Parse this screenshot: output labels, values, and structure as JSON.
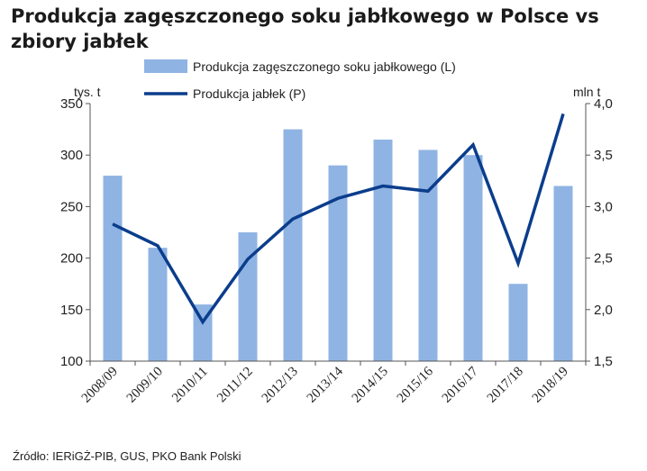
{
  "title": "Produkcja zagęszczonego soku jabłkowego w Polsce vs zbiory jabłek",
  "source": "Źródło: IERiGŻ-PIB, GUS, PKO Bank Polski",
  "chart_data": {
    "type": "bar+line",
    "categories": [
      "2008/09",
      "2009/10",
      "2010/11",
      "2011/12",
      "2012/13",
      "2013/14",
      "2014/15",
      "2015/16",
      "2016/17",
      "2017/18",
      "2018/19"
    ],
    "series": [
      {
        "name": "Produkcja zagęszczonego soku jabłkowego (L)",
        "type": "bar",
        "axis": "left",
        "color": "#8fb3e3",
        "values": [
          280,
          210,
          155,
          225,
          325,
          290,
          315,
          305,
          300,
          175,
          270
        ]
      },
      {
        "name": "Produkcja jabłek (P)",
        "type": "line",
        "axis": "right",
        "color": "#0b3d8c",
        "values": [
          2.83,
          2.62,
          1.88,
          2.49,
          2.88,
          3.08,
          3.2,
          3.15,
          3.6,
          2.45,
          3.9
        ]
      }
    ],
    "y_left": {
      "unit": "tys. t",
      "lim": [
        100,
        350
      ],
      "ticks": [
        "100",
        "150",
        "200",
        "250",
        "300",
        "350"
      ]
    },
    "y_right": {
      "unit": "mln t",
      "lim": [
        1.5,
        4.0
      ],
      "ticks": [
        "1,5",
        "2,0",
        "2,5",
        "3,0",
        "3,5",
        "4,0"
      ]
    },
    "legend": "top-center",
    "grid": false
  }
}
